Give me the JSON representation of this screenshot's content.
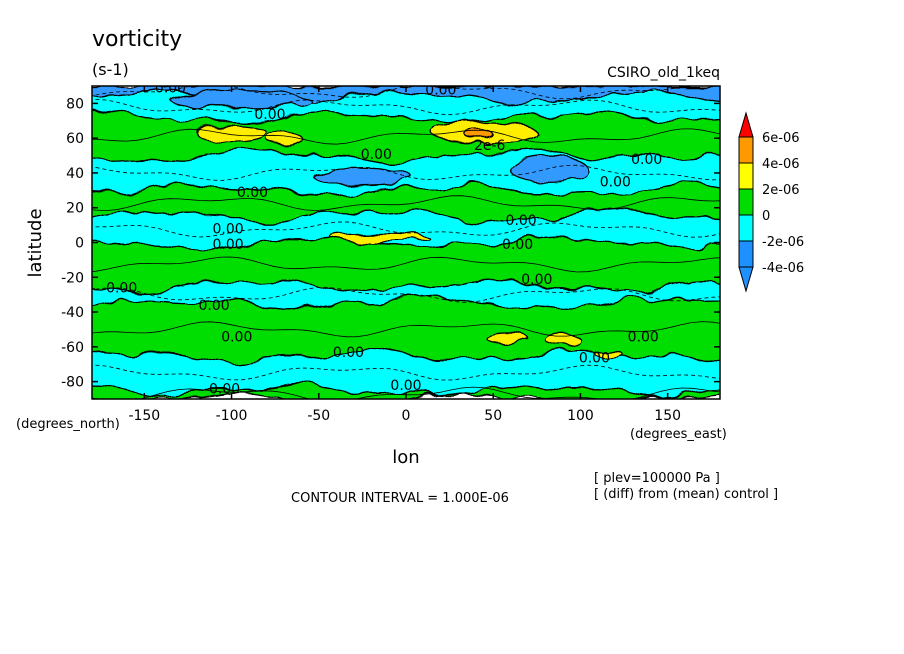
{
  "chart_data": {
    "type": "heatmap",
    "title": "vorticity",
    "units": "(s-1)",
    "model": "CSIRO_old_1keq",
    "xlabel": "lon",
    "ylabel": "latitude",
    "x_units": "(degrees_east)",
    "y_units": "(degrees_north)",
    "xlim": [
      -180,
      180
    ],
    "ylim": [
      -90,
      90
    ],
    "x_ticks": [
      {
        "value": -150,
        "label": "-150"
      },
      {
        "value": -100,
        "label": "-100"
      },
      {
        "value": -50,
        "label": "-50"
      },
      {
        "value": 0,
        "label": "0"
      },
      {
        "value": 50,
        "label": "50"
      },
      {
        "value": 100,
        "label": "100"
      },
      {
        "value": 150,
        "label": "150"
      }
    ],
    "y_ticks": [
      {
        "value": 80,
        "label": "80"
      },
      {
        "value": 60,
        "label": "60"
      },
      {
        "value": 40,
        "label": "40"
      },
      {
        "value": 20,
        "label": "20"
      },
      {
        "value": 0,
        "label": "0"
      },
      {
        "value": -20,
        "label": "-20"
      },
      {
        "value": -40,
        "label": "-40"
      },
      {
        "value": -60,
        "label": "-60"
      },
      {
        "value": -80,
        "label": "-80"
      }
    ],
    "legend": {
      "placement": "right",
      "levels": [
        {
          "label": "6e-06",
          "color": "#ff0000"
        },
        {
          "label": "4e-06",
          "color": "#ff9900"
        },
        {
          "label": "2e-06",
          "color": "#ffff00"
        },
        {
          "label": "0",
          "color": "#00dd00"
        },
        {
          "label": "-2e-06",
          "color": "#00ffff"
        },
        {
          "label": "-4e-06",
          "color": "#1e90ff"
        }
      ],
      "over_color": "#ff0000",
      "under_color": "#1e90ff"
    },
    "colors": {
      "strong_neg": "#3399ff",
      "neg": "#00ffff",
      "pos": "#00dd00",
      "strong_pos": "#ffee00",
      "peak_pos": "#ff9900"
    },
    "bands": [
      {
        "lat_from": 90,
        "lat_to": 84,
        "sign": "negative"
      },
      {
        "lat_from": 84,
        "lat_to": 72,
        "sign": "negative"
      },
      {
        "lat_from": 72,
        "lat_to": 50,
        "sign": "positive"
      },
      {
        "lat_from": 50,
        "lat_to": 30,
        "sign": "negative"
      },
      {
        "lat_from": 30,
        "lat_to": 15,
        "sign": "positive"
      },
      {
        "lat_from": 15,
        "lat_to": 0,
        "sign": "negative"
      },
      {
        "lat_from": 0,
        "lat_to": -25,
        "sign": "positive"
      },
      {
        "lat_from": -25,
        "lat_to": -35,
        "sign": "negative"
      },
      {
        "lat_from": -35,
        "lat_to": -65,
        "sign": "positive"
      },
      {
        "lat_from": -65,
        "lat_to": -85,
        "sign": "negative"
      },
      {
        "lat_from": -85,
        "lat_to": -90,
        "sign": "positive"
      }
    ],
    "regions": [
      {
        "lon": -95,
        "lat": 82,
        "rx": 40,
        "ry": 5,
        "level": "strong_neg"
      },
      {
        "lon": -100,
        "lat": 63,
        "rx": 20,
        "ry": 5,
        "level": "strong_pos"
      },
      {
        "lon": -70,
        "lat": 60,
        "rx": 10,
        "ry": 4,
        "level": "strong_pos"
      },
      {
        "lon": 45,
        "lat": 63,
        "rx": 30,
        "ry": 6,
        "level": "strong_pos"
      },
      {
        "lon": 42,
        "lat": 62,
        "rx": 8,
        "ry": 2.5,
        "level": "peak_pos"
      },
      {
        "lon": -25,
        "lat": 38,
        "rx": 28,
        "ry": 5,
        "level": "strong_neg"
      },
      {
        "lon": 82,
        "lat": 42,
        "rx": 22,
        "ry": 8,
        "level": "strong_neg"
      },
      {
        "lon": -15,
        "lat": 3,
        "rx": 28,
        "ry": 2.5,
        "level": "strong_pos"
      },
      {
        "lon": 58,
        "lat": -55,
        "rx": 12,
        "ry": 3,
        "level": "strong_pos"
      },
      {
        "lon": 90,
        "lat": -56,
        "rx": 10,
        "ry": 3.5,
        "level": "strong_pos"
      },
      {
        "lon": 115,
        "lat": -63,
        "rx": 8,
        "ry": 2,
        "level": "strong_pos"
      }
    ],
    "contour_labels": [
      {
        "text": "0.00",
        "lon": -135,
        "lat": 89
      },
      {
        "text": "0.00",
        "lon": 20,
        "lat": 88
      },
      {
        "text": "0.00",
        "lon": -78,
        "lat": 74
      },
      {
        "text": "2e-6",
        "lon": 48,
        "lat": 56
      },
      {
        "text": "0.00",
        "lon": -17,
        "lat": 51
      },
      {
        "text": "0.00",
        "lon": 138,
        "lat": 48
      },
      {
        "text": "0.00",
        "lon": 120,
        "lat": 35
      },
      {
        "text": "0.00",
        "lon": -88,
        "lat": 29
      },
      {
        "text": "0.00",
        "lon": 66,
        "lat": 13
      },
      {
        "text": "0.00",
        "lon": -102,
        "lat": 8
      },
      {
        "text": "0.00",
        "lon": -102,
        "lat": -1
      },
      {
        "text": "0.00",
        "lon": 64,
        "lat": -1
      },
      {
        "text": "0.00",
        "lon": 75,
        "lat": -21
      },
      {
        "text": "0.00",
        "lon": -163,
        "lat": -26
      },
      {
        "text": "0.00",
        "lon": -110,
        "lat": -36
      },
      {
        "text": "0.00",
        "lon": -97,
        "lat": -54
      },
      {
        "text": "0.00",
        "lon": -33,
        "lat": -63
      },
      {
        "text": "0.00",
        "lon": 136,
        "lat": -54
      },
      {
        "text": "0.00",
        "lon": 108,
        "lat": -66
      },
      {
        "text": "0.00",
        "lon": -104,
        "lat": -84
      },
      {
        "text": "0.00",
        "lon": 0,
        "lat": -82
      }
    ]
  },
  "footer": {
    "contour_interval": "CONTOUR INTERVAL = 1.000E-06",
    "note_plev": "[ plev=100000 Pa ]",
    "note_diff": "[ (diff) from (mean) control ]"
  }
}
